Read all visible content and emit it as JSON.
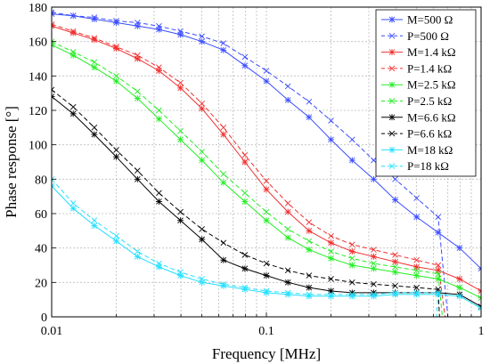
{
  "chart_data": {
    "type": "line",
    "xlabel": "Frequency [MHz]",
    "ylabel": "Phase response  [°]",
    "xscale": "log",
    "xlim": [
      0.01,
      1
    ],
    "ylim": [
      0,
      180
    ],
    "xticks": [
      0.01,
      0.1,
      1
    ],
    "xtick_labels": [
      "0.01",
      "0.1",
      "1"
    ],
    "yticks": [
      0,
      20,
      40,
      60,
      80,
      100,
      120,
      140,
      160,
      180
    ],
    "grid": true,
    "legend_position": "top-right",
    "series": [
      {
        "name": "M=500 Ω",
        "color": "#3a4cff",
        "dash": "solid",
        "marker": "star",
        "x": [
          0.01,
          0.0126,
          0.0158,
          0.02,
          0.0251,
          0.0316,
          0.0398,
          0.0501,
          0.0631,
          0.0794,
          0.1,
          0.126,
          0.158,
          0.2,
          0.251,
          0.316,
          0.398,
          0.501,
          0.631,
          0.794,
          1.0
        ],
        "y": [
          176,
          175,
          173,
          171,
          169,
          167,
          164,
          160,
          155,
          146,
          137,
          126,
          116,
          103,
          91,
          80,
          68,
          58,
          49,
          40,
          28
        ]
      },
      {
        "name": "P=500 Ω",
        "color": "#3a4cff",
        "dash": "dashed",
        "marker": "x",
        "x": [
          0.01,
          0.0126,
          0.0158,
          0.02,
          0.0251,
          0.0316,
          0.0398,
          0.0501,
          0.0631,
          0.0794,
          0.1,
          0.126,
          0.158,
          0.2,
          0.251,
          0.316,
          0.398,
          0.501,
          0.631,
          0.7
        ],
        "y": [
          177,
          175,
          174,
          172,
          171,
          169,
          166,
          163,
          159,
          151,
          143,
          134,
          125,
          114,
          103,
          91,
          80,
          69,
          58,
          0
        ]
      },
      {
        "name": "M=1.4 kΩ",
        "color": "#f03030",
        "dash": "solid",
        "marker": "star",
        "x": [
          0.01,
          0.0126,
          0.0158,
          0.02,
          0.0251,
          0.0316,
          0.0398,
          0.0501,
          0.0631,
          0.0794,
          0.1,
          0.126,
          0.158,
          0.2,
          0.251,
          0.316,
          0.398,
          0.501,
          0.631,
          0.794,
          1.0
        ],
        "y": [
          169,
          165,
          161,
          156,
          150,
          143,
          133,
          121,
          106,
          90,
          74,
          61,
          50,
          43,
          38,
          35,
          32,
          29,
          27,
          22,
          15
        ]
      },
      {
        "name": "P=1.4 kΩ",
        "color": "#f03030",
        "dash": "dashed",
        "marker": "x",
        "x": [
          0.01,
          0.0126,
          0.0158,
          0.02,
          0.0251,
          0.0316,
          0.0398,
          0.0501,
          0.0631,
          0.0794,
          0.1,
          0.126,
          0.158,
          0.2,
          0.251,
          0.316,
          0.398,
          0.501,
          0.631,
          0.68
        ],
        "y": [
          170,
          166,
          162,
          157,
          152,
          145,
          136,
          124,
          110,
          94,
          79,
          66,
          55,
          47,
          42,
          39,
          36,
          33,
          30,
          0
        ]
      },
      {
        "name": "M=2.5 kΩ",
        "color": "#22ee22",
        "dash": "solid",
        "marker": "star",
        "x": [
          0.01,
          0.0126,
          0.0158,
          0.02,
          0.0251,
          0.0316,
          0.0398,
          0.0501,
          0.0631,
          0.0794,
          0.1,
          0.126,
          0.158,
          0.2,
          0.251,
          0.316,
          0.398,
          0.501,
          0.631,
          0.794,
          1.0
        ],
        "y": [
          158,
          152,
          145,
          137,
          127,
          115,
          103,
          91,
          78,
          67,
          56,
          46,
          39,
          34,
          30,
          28,
          26,
          24,
          22,
          17,
          11
        ]
      },
      {
        "name": "P=2.5 kΩ",
        "color": "#22ee22",
        "dash": "dashed",
        "marker": "x",
        "x": [
          0.01,
          0.0126,
          0.0158,
          0.02,
          0.0251,
          0.0316,
          0.0398,
          0.0501,
          0.0631,
          0.0794,
          0.1,
          0.126,
          0.158,
          0.2,
          0.251,
          0.316,
          0.398,
          0.501,
          0.631,
          0.66
        ],
        "y": [
          160,
          154,
          148,
          140,
          131,
          120,
          108,
          96,
          83,
          72,
          61,
          51,
          44,
          38,
          34,
          31,
          29,
          27,
          25,
          0
        ]
      },
      {
        "name": "M=6.6 kΩ",
        "color": "#000000",
        "dash": "solid",
        "marker": "star",
        "x": [
          0.01,
          0.0126,
          0.0158,
          0.02,
          0.0251,
          0.0316,
          0.0398,
          0.0501,
          0.0631,
          0.0794,
          0.1,
          0.126,
          0.158,
          0.2,
          0.251,
          0.316,
          0.398,
          0.501,
          0.631,
          0.794,
          1.0
        ],
        "y": [
          128,
          118,
          106,
          93,
          80,
          67,
          56,
          45,
          33,
          28,
          24,
          20,
          17,
          15,
          14,
          14,
          14,
          14,
          14,
          13,
          6
        ]
      },
      {
        "name": "P=6.6 kΩ",
        "color": "#000000",
        "dash": "dashed",
        "marker": "x",
        "x": [
          0.01,
          0.0126,
          0.0158,
          0.02,
          0.0251,
          0.0316,
          0.0398,
          0.0501,
          0.0631,
          0.0794,
          0.1,
          0.126,
          0.158,
          0.2,
          0.251,
          0.316,
          0.398,
          0.501,
          0.631,
          0.64
        ],
        "y": [
          132,
          122,
          110,
          97,
          85,
          72,
          61,
          51,
          43,
          36,
          31,
          27,
          24,
          22,
          20,
          19,
          18,
          17,
          16,
          0
        ]
      },
      {
        "name": "M=18 kΩ",
        "color": "#22e0ff",
        "dash": "solid",
        "marker": "star",
        "x": [
          0.01,
          0.0126,
          0.0158,
          0.02,
          0.0251,
          0.0316,
          0.0398,
          0.0501,
          0.0631,
          0.0794,
          0.1,
          0.126,
          0.158,
          0.2,
          0.251,
          0.316,
          0.398,
          0.501,
          0.631,
          0.794,
          1.0
        ],
        "y": [
          76,
          63,
          53,
          44,
          35,
          29,
          24,
          20,
          18,
          16,
          14,
          13,
          12,
          12,
          12,
          12,
          13,
          13,
          13,
          12,
          5
        ]
      },
      {
        "name": "P=18 kΩ",
        "color": "#22e0ff",
        "dash": "dashed",
        "marker": "x",
        "x": [
          0.01,
          0.0126,
          0.0158,
          0.02,
          0.0251,
          0.0316,
          0.0398,
          0.0501,
          0.0631,
          0.0794,
          0.1,
          0.126,
          0.158,
          0.2,
          0.251,
          0.316,
          0.398,
          0.501,
          0.631,
          0.62
        ],
        "y": [
          80,
          66,
          56,
          47,
          38,
          31,
          26,
          22,
          19,
          17,
          15,
          14,
          13,
          13,
          13,
          13,
          14,
          14,
          14,
          0
        ]
      }
    ]
  }
}
